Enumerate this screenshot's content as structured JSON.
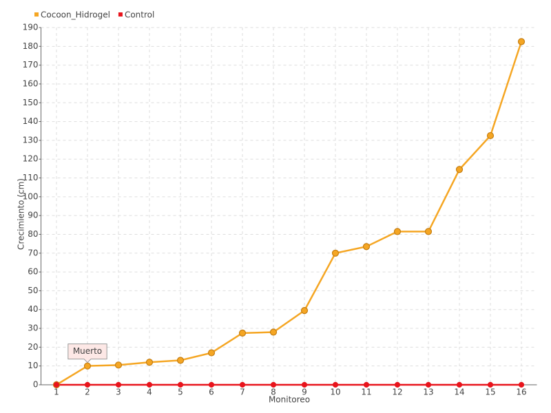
{
  "chart_data": {
    "type": "line",
    "x_label": "Monitoreo",
    "y_label": "Crecimiento (cm)",
    "categories": [
      "1",
      "2",
      "3",
      "4",
      "5",
      "6",
      "7",
      "8",
      "9",
      "10",
      "11",
      "12",
      "13",
      "14",
      "15",
      "16"
    ],
    "series": [
      {
        "name": "Cocoon_Hidrogel",
        "color": "#f5a623",
        "values": [
          0,
          10,
          10.5,
          12,
          13,
          17,
          27.5,
          28,
          39.5,
          70,
          73.5,
          81.5,
          81.5,
          114.5,
          132.5,
          182.5
        ]
      },
      {
        "name": "Control",
        "color": "#e8141c",
        "values": [
          0,
          0,
          0,
          0,
          0,
          0,
          0,
          0,
          0,
          0,
          0,
          0,
          0,
          0,
          0,
          0
        ]
      }
    ],
    "annotations": [
      {
        "text": "Muerto",
        "x": "2"
      }
    ],
    "ylim": [
      0,
      190
    ],
    "yticks": [
      0,
      10,
      20,
      30,
      40,
      50,
      60,
      70,
      80,
      90,
      100,
      110,
      120,
      130,
      140,
      150,
      160,
      170,
      180,
      190
    ],
    "grid": true,
    "legend": "top-left"
  }
}
